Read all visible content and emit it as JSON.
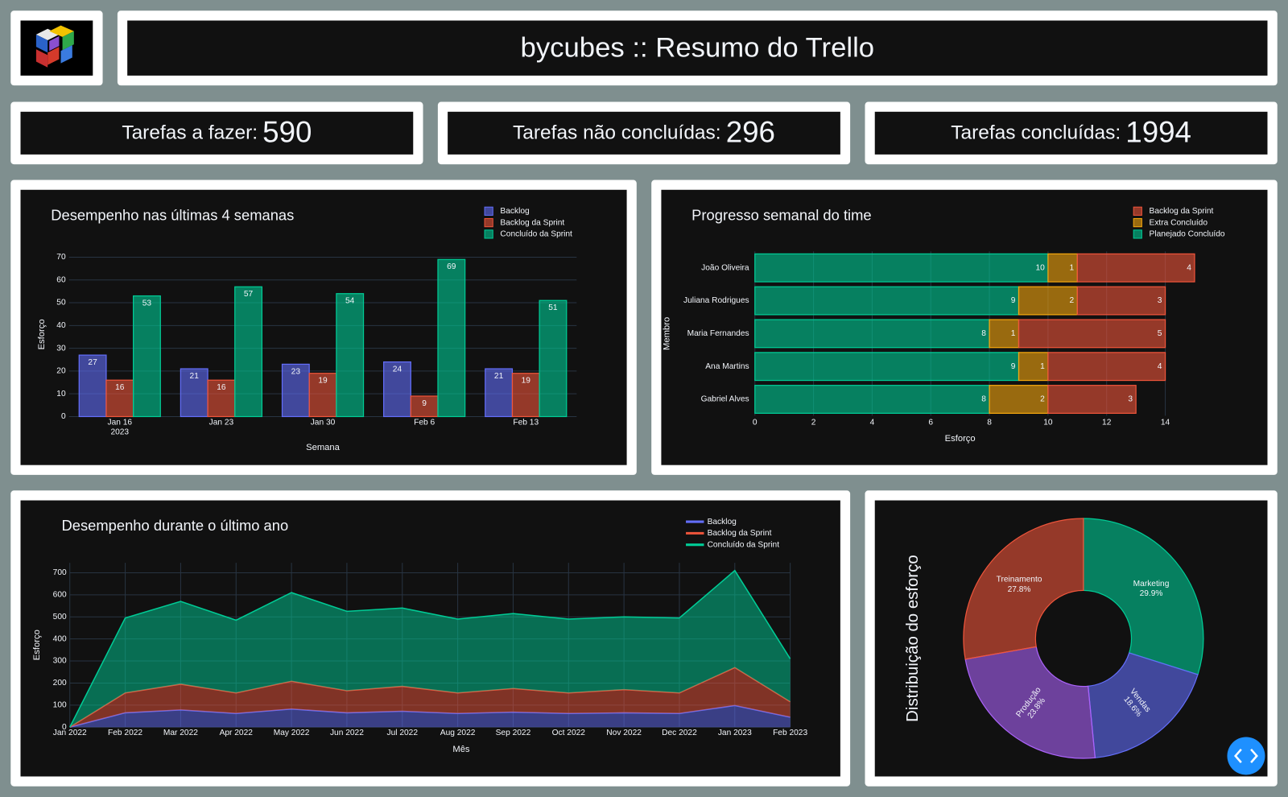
{
  "header": {
    "title": "bycubes :: Resumo do Trello"
  },
  "kpis": [
    {
      "label": "Tarefas a fazer:",
      "value": 590
    },
    {
      "label": "Tarefas não concluídas:",
      "value": 296
    },
    {
      "label": "Tarefas concluídas:",
      "value": 1994
    }
  ],
  "chart_data": [
    {
      "type": "bar",
      "title": "Desempenho nas últimas 4 semanas",
      "categories": [
        "Jan 16",
        "Jan 23",
        "Jan 30",
        "Feb 6",
        "Feb 13"
      ],
      "x_year": "2023",
      "xlabel": "Semana",
      "ylabel": "Esforço",
      "ylim": [
        0,
        74.7
      ],
      "yticks": [
        0,
        10,
        20,
        30,
        40,
        50,
        60,
        70
      ],
      "grid": true,
      "legend": "top-right",
      "series": [
        {
          "name": "Backlog",
          "color": "#636efa",
          "values": [
            27,
            21,
            23,
            24,
            21
          ]
        },
        {
          "name": "Backlog da Sprint",
          "color": "#ef553b",
          "values": [
            16,
            16,
            19,
            9,
            19
          ]
        },
        {
          "name": "Concluído da Sprint",
          "color": "#00cc96",
          "values": [
            53,
            57,
            54,
            69,
            51
          ]
        }
      ]
    },
    {
      "type": "hbar",
      "title": "Progresso semanal do time",
      "categories": [
        "João Oliveira",
        "Juliana Rodrigues",
        "Maria Fernandes",
        "Ana Martins",
        "Gabriel Alves"
      ],
      "xlabel": "Esforço",
      "ylabel": "Membro",
      "xlim": [
        0,
        15.3
      ],
      "xticks": [
        0,
        2,
        4,
        6,
        8,
        10,
        12,
        14
      ],
      "grid": true,
      "legend": "top-right",
      "stacked": true,
      "series": [
        {
          "name": "Backlog da Sprint",
          "color": "#ef553b",
          "values": [
            4,
            3,
            5,
            4,
            3
          ]
        },
        {
          "name": "Extra Concluído",
          "color": "#f5a70f",
          "values": [
            1,
            2,
            1,
            1,
            2
          ]
        },
        {
          "name": "Planejado Concluído",
          "color": "#00cc96",
          "values": [
            10,
            9,
            8,
            9,
            8
          ]
        }
      ]
    },
    {
      "type": "area",
      "title": "Desempenho durante o último ano",
      "categories": [
        "Jan 2022",
        "Feb 2022",
        "Mar 2022",
        "Apr 2022",
        "May 2022",
        "Jun 2022",
        "Jul 2022",
        "Aug 2022",
        "Sep 2022",
        "Oct 2022",
        "Nov 2022",
        "Dec 2022",
        "Jan 2023",
        "Feb 2023"
      ],
      "xlabel": "Mês",
      "ylabel": "Esforço",
      "ylim": [
        0,
        745
      ],
      "yticks": [
        0,
        100,
        200,
        300,
        400,
        500,
        600,
        700
      ],
      "grid": true,
      "legend": "top-right",
      "stacked": true,
      "series": [
        {
          "name": "Backlog",
          "color": "#636efa",
          "values": [
            0,
            65,
            78,
            62,
            82,
            65,
            72,
            62,
            68,
            62,
            65,
            62,
            98,
            45
          ]
        },
        {
          "name": "Backlog da Sprint",
          "color": "#ef553b",
          "values": [
            0,
            90,
            117,
            93,
            126,
            100,
            113,
            93,
            107,
            93,
            105,
            93,
            172,
            70
          ]
        },
        {
          "name": "Concluído da Sprint",
          "color": "#00cc96",
          "values": [
            0,
            340,
            375,
            330,
            402,
            360,
            355,
            335,
            340,
            335,
            330,
            340,
            440,
            195
          ]
        }
      ]
    },
    {
      "type": "pie",
      "title": "Distribuição do esforço",
      "hole": 0.4,
      "categories": [
        "Marketing",
        "Vendas",
        "Produção",
        "Treinamento"
      ],
      "values": [
        29.9,
        18.6,
        23.8,
        27.8
      ],
      "value_labels": [
        "29.9%",
        "18.6%",
        "23.8%",
        "27.8%"
      ],
      "colors": [
        "#00cc96",
        "#636efa",
        "#ab63fa",
        "#ef553b"
      ]
    }
  ]
}
